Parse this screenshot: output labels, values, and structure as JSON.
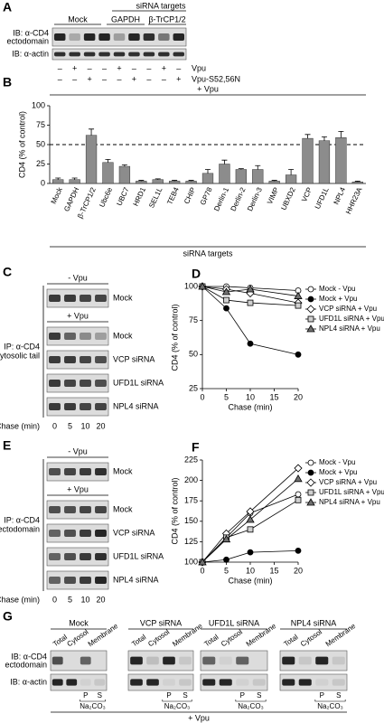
{
  "panel_labels": [
    "A",
    "B",
    "C",
    "D",
    "E",
    "F",
    "G"
  ],
  "panel_a": {
    "header": "siRNA targets",
    "groups": [
      "Mock",
      "GAPDH",
      "β-TrCP1/2"
    ],
    "blot_labels": [
      [
        "IB: α-CD4",
        "ectodomain"
      ],
      [
        "IB: α-actin"
      ]
    ],
    "rows": [
      {
        "name": "Vpu",
        "signs": [
          "–",
          "+",
          "–",
          "–",
          "+",
          "–",
          "–",
          "+",
          "–"
        ]
      },
      {
        "name": "Vpu-S52,56N",
        "signs": [
          "–",
          "–",
          "+",
          "–",
          "–",
          "+",
          "–",
          "–",
          "+"
        ]
      }
    ]
  },
  "chart_data": [
    {
      "type": "bar",
      "title": "+ Vpu",
      "x_label": "siRNA targets",
      "y_label": "CD4 (% of control)",
      "categories": [
        "Mock",
        "GAPDH",
        "β-TrCP1/2",
        "Ubc6e",
        "UBC7",
        "HRD1",
        "SEL1L",
        "TEB4",
        "CHIP",
        "GP78",
        "Derlin-1",
        "Derlin-2",
        "Derlin-3",
        "VIMP",
        "UBXD2",
        "VCP",
        "UFD1L",
        "NPL4",
        "HHR23A"
      ],
      "values": [
        5,
        5,
        62,
        27,
        22,
        3,
        5,
        3,
        3,
        13,
        25,
        18,
        18,
        3,
        11,
        58,
        55,
        59,
        2
      ],
      "errors": [
        2,
        2,
        8,
        4,
        2,
        1,
        1,
        1,
        1,
        5,
        5,
        1,
        5,
        1,
        7,
        5,
        5,
        8,
        1
      ],
      "color": "#8c8c8c",
      "reference_line": 50,
      "ylim": [
        0,
        100
      ],
      "yticks": [
        0,
        25,
        50,
        75,
        100
      ]
    },
    {
      "type": "line",
      "x_label": "Chase (min)",
      "y_label": "CD4 (% of control)",
      "x": [
        0,
        5,
        10,
        20
      ],
      "xlim": [
        0,
        20
      ],
      "xticks": [
        0,
        5,
        10,
        15,
        20
      ],
      "ylim": [
        25,
        100
      ],
      "yticks": [
        25,
        50,
        75,
        100
      ],
      "series": [
        {
          "name": "Mock - Vpu",
          "color": "#000000",
          "marker": "circle",
          "marker_fill": "#ffffff",
          "values": [
            100,
            100,
            99,
            97
          ]
        },
        {
          "name": "Mock + Vpu",
          "color": "#000000",
          "marker": "circle",
          "marker_fill": "#000000",
          "values": [
            100,
            84,
            58,
            50
          ]
        },
        {
          "name": "VCP siRNA + Vpu",
          "color": "#000000",
          "marker": "diamond",
          "marker_fill": "#ffffff",
          "values": [
            100,
            98,
            95,
            88
          ]
        },
        {
          "name": "UFD1L siRNA + Vpu",
          "color": "#000000",
          "marker": "square",
          "marker_fill": "#d0d0d0",
          "values": [
            100,
            90,
            88,
            86
          ]
        },
        {
          "name": "NPL4 siRNA + Vpu",
          "color": "#000000",
          "marker": "triangle",
          "marker_fill": "#707070",
          "values": [
            100,
            96,
            98,
            93
          ]
        }
      ]
    },
    {
      "type": "line",
      "x_label": "Chase (min)",
      "y_label": "CD4 (% of control)",
      "x": [
        0,
        5,
        10,
        20
      ],
      "xlim": [
        0,
        20
      ],
      "xticks": [
        0,
        5,
        10,
        15,
        20
      ],
      "ylim": [
        100,
        225
      ],
      "yticks": [
        100,
        125,
        150,
        175,
        200,
        225
      ],
      "series": [
        {
          "name": "Mock - Vpu",
          "color": "#000000",
          "marker": "circle",
          "marker_fill": "#ffffff",
          "values": [
            100,
            130,
            160,
            183
          ]
        },
        {
          "name": "Mock + Vpu",
          "color": "#000000",
          "marker": "circle",
          "marker_fill": "#000000",
          "values": [
            100,
            103,
            112,
            114
          ]
        },
        {
          "name": "VCP siRNA + Vpu",
          "color": "#000000",
          "marker": "diamond",
          "marker_fill": "#ffffff",
          "values": [
            100,
            135,
            162,
            215
          ]
        },
        {
          "name": "UFD1L siRNA + Vpu",
          "color": "#000000",
          "marker": "square",
          "marker_fill": "#d0d0d0",
          "values": [
            100,
            130,
            140,
            176
          ]
        },
        {
          "name": "NPL4 siRNA + Vpu",
          "color": "#000000",
          "marker": "triangle",
          "marker_fill": "#707070",
          "values": [
            100,
            128,
            152,
            202
          ]
        }
      ]
    }
  ],
  "panel_c": {
    "headers": [
      "- Vpu",
      "+ Vpu"
    ],
    "lane_labels": [
      "Mock",
      "Mock",
      "VCP siRNA",
      "UFD1L siRNA",
      "NPL4 siRNA"
    ],
    "ip_label": [
      "IP: α-CD4",
      "cytosolic tail"
    ],
    "chase_label": "Chase (min)",
    "chase_times": [
      0,
      5,
      10,
      20
    ]
  },
  "panel_e": {
    "headers": [
      "- Vpu",
      "+ Vpu"
    ],
    "lane_labels": [
      "Mock",
      "Mock",
      "VCP siRNA",
      "UFD1L siRNA",
      "NPL4 siRNA"
    ],
    "ip_label": [
      "IP: α-CD4",
      "ectodomain"
    ],
    "chase_label": "Chase (min)",
    "chase_times": [
      0,
      5,
      10,
      20
    ]
  },
  "panel_g": {
    "groups": [
      "Mock",
      "VCP siRNA",
      "UFD1L siRNA",
      "NPL4 siRNA"
    ],
    "columns": [
      "Total",
      "Cytosol",
      "Membrane"
    ],
    "blot_labels": [
      [
        "IB: α-CD4",
        "ectodomain"
      ],
      [
        "IB: α-actin"
      ]
    ],
    "fractions": [
      "P",
      "S"
    ],
    "reagent": "Na₂CO₃",
    "footer": "+ Vpu"
  }
}
